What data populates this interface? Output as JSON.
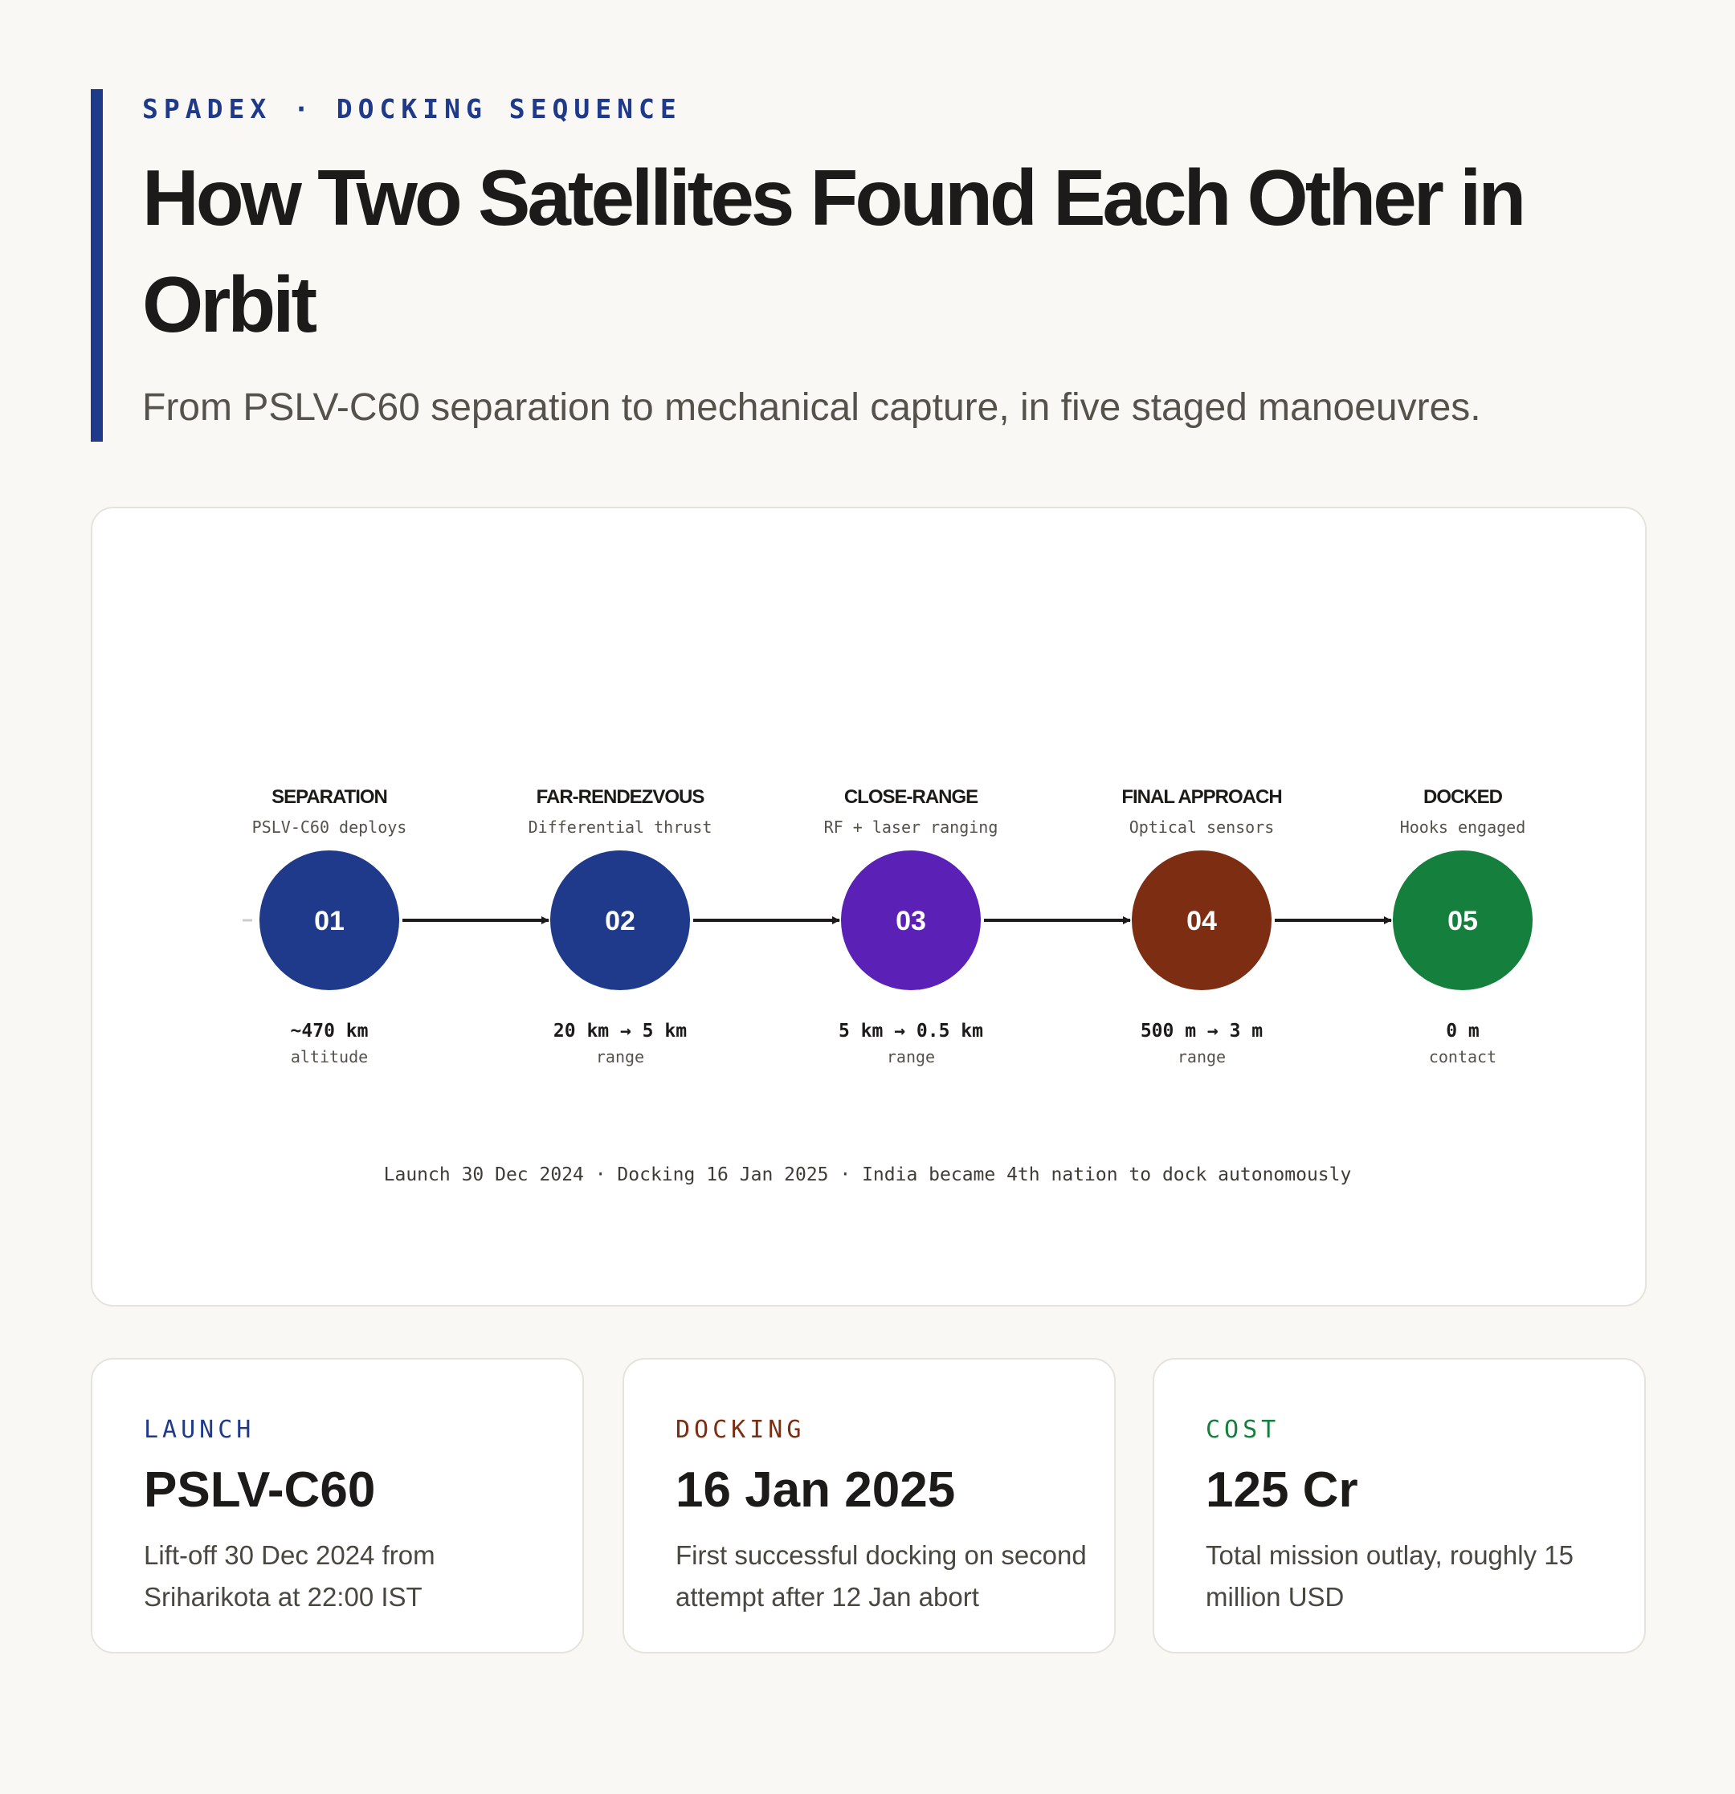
{
  "header": {
    "eyebrow": "SPADEX · DOCKING SEQUENCE",
    "title": "How Two Satellites Found Each Other in Orbit",
    "subtitle": "From PSLV-C60 separation to mechanical capture, in five staged manoeuvres."
  },
  "diagram": {
    "steps": [
      {
        "number": "01",
        "label": "SEPARATION",
        "detail": "PSLV-C60 deploys",
        "metric": "~470 km",
        "metric_label": "altitude"
      },
      {
        "number": "02",
        "label": "FAR-RENDEZVOUS",
        "detail": "Differential thrust",
        "metric": "20 km → 5 km",
        "metric_label": "range"
      },
      {
        "number": "03",
        "label": "CLOSE-RANGE",
        "detail": "RF + laser ranging",
        "metric": "5 km → 0.5 km",
        "metric_label": "range"
      },
      {
        "number": "04",
        "label": "FINAL APPROACH",
        "detail": "Optical sensors",
        "metric": "500 m → 3 m",
        "metric_label": "range"
      },
      {
        "number": "05",
        "label": "DOCKED",
        "detail": "Hooks engaged",
        "metric": "0 m",
        "metric_label": "contact"
      }
    ],
    "footnote": "Launch 30 Dec 2024 · Docking 16 Jan 2025 · India became 4th nation to dock autonomously"
  },
  "cards": [
    {
      "label": "LAUNCH",
      "value": "PSLV-C60",
      "text": "Lift-off 30 Dec 2024 from Sriharikota at 22:00 IST"
    },
    {
      "label": "DOCKING",
      "value": "16 Jan 2025",
      "text": "First successful docking on second attempt after 12 Jan abort"
    },
    {
      "label": "COST",
      "value": "125 Cr",
      "text": "Total mission outlay, roughly 15 million USD"
    }
  ]
}
